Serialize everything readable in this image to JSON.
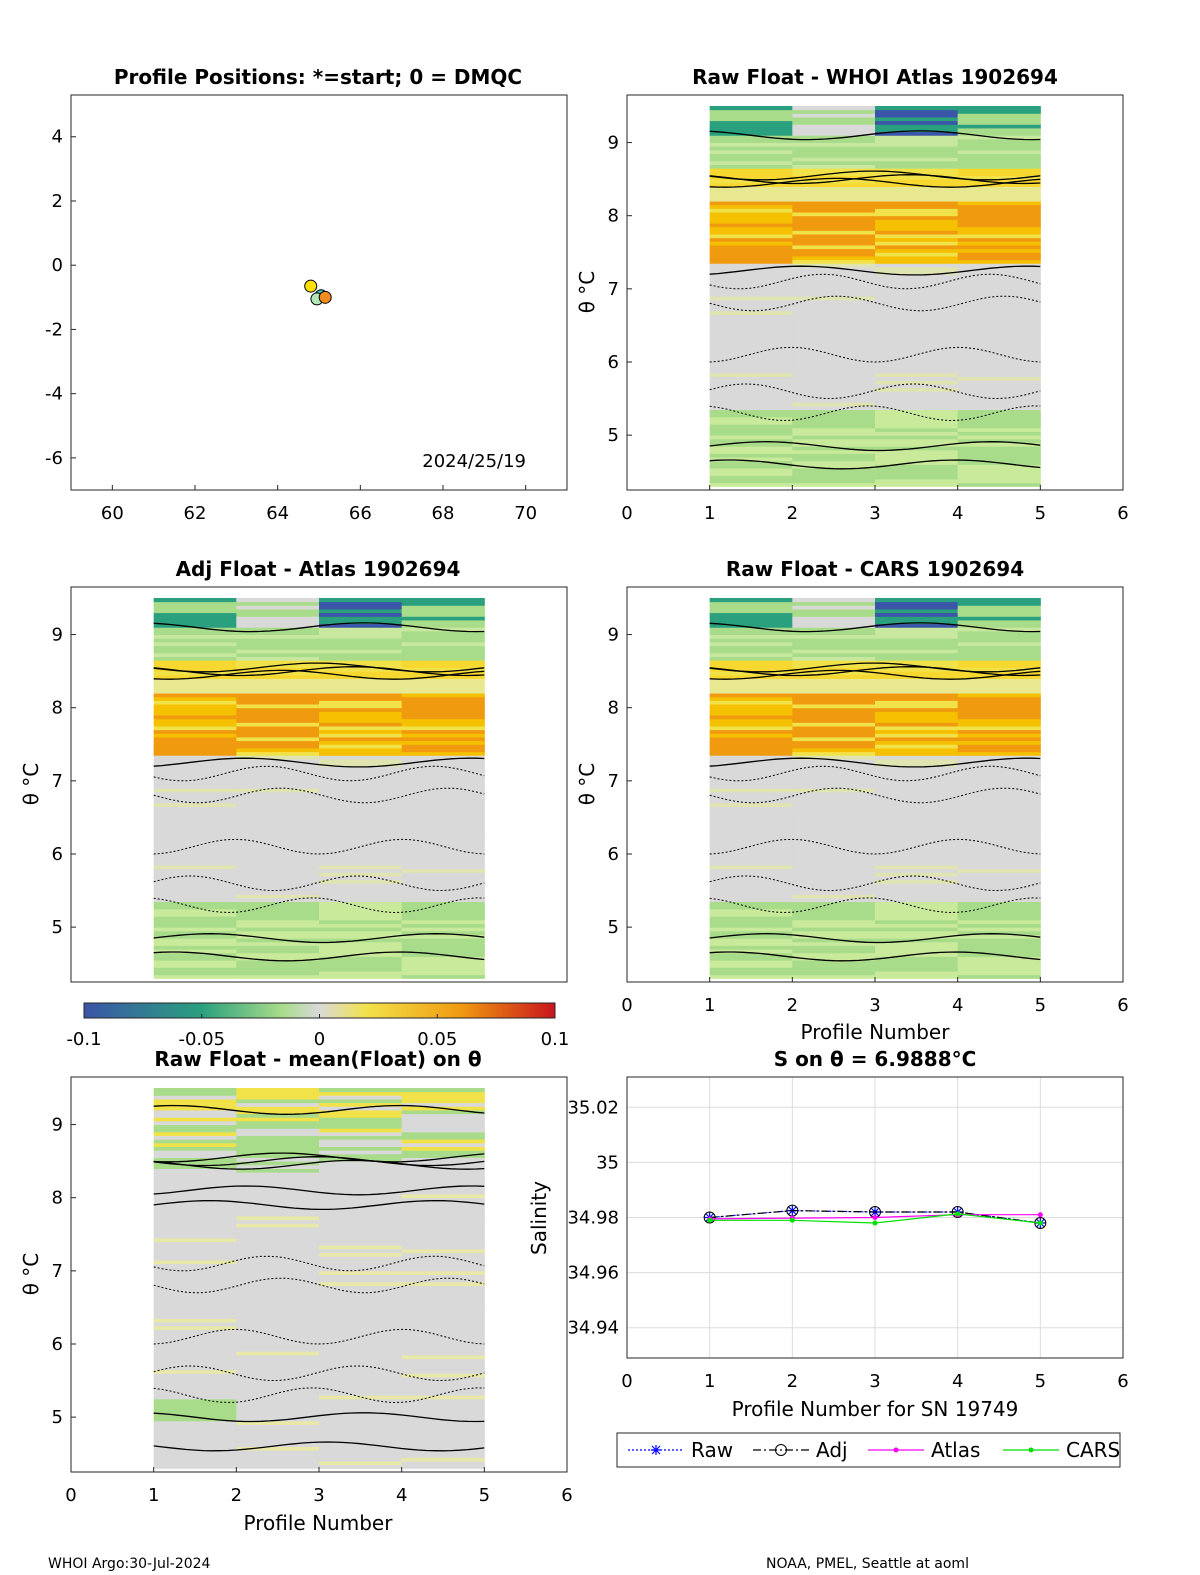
{
  "footer": {
    "left": "WHOI Argo:30-Jul-2024",
    "right": "NOAA, PMEL, Seattle at aoml"
  },
  "colors": {
    "neg_strong": "#3b55a8",
    "neg_mid": "#2aa07e",
    "neg_light": "#a8dc8a",
    "zero": "#d9d9d9",
    "pos_light": "#f2e24a",
    "pos_mid": "#f09a10",
    "pos_strong": "#c8141e"
  },
  "chart_data": [
    {
      "id": "positions",
      "type": "scatter",
      "title": "Profile Positions: *=start; 0 = DMQC",
      "xlim": [
        59,
        71
      ],
      "ylim": [
        -7,
        5.3
      ],
      "xticks": [
        "60",
        "62",
        "64",
        "66",
        "68",
        "70"
      ],
      "yticks": [
        "-6",
        "-4",
        "-2",
        "0",
        "2",
        "4"
      ],
      "annotation": "2024/25/19",
      "points": [
        {
          "x": 64.8,
          "y": -0.65,
          "color": "#ffe000"
        },
        {
          "x": 65.05,
          "y": -0.95,
          "color": "#40c0b0"
        },
        {
          "x": 64.95,
          "y": -1.05,
          "color": "#b0e6b8"
        },
        {
          "x": 65.15,
          "y": -1.0,
          "color": "#f08c20"
        }
      ]
    },
    {
      "id": "raw-whoi",
      "type": "heatmap",
      "title": "Raw Float - WHOI Atlas  1902694",
      "xlim": [
        0,
        6
      ],
      "ylim": [
        4.25,
        9.65
      ],
      "xticks": [
        "0",
        "1",
        "2",
        "3",
        "4",
        "5",
        "6"
      ],
      "yticks": [
        "5",
        "6",
        "7",
        "8",
        "9"
      ],
      "ylabel": "θ °C",
      "xlabel": ""
    },
    {
      "id": "adj-atlas",
      "type": "heatmap",
      "title": "Adj Float - Atlas  1902694",
      "xlim": [
        0,
        6
      ],
      "ylim": [
        4.25,
        9.65
      ],
      "yticks": [
        "5",
        "6",
        "7",
        "8",
        "9"
      ],
      "ylabel": "θ °C"
    },
    {
      "id": "raw-cars",
      "type": "heatmap",
      "title": "Raw Float - CARS  1902694",
      "xlim": [
        0,
        6
      ],
      "ylim": [
        4.25,
        9.65
      ],
      "xticks": [
        "0",
        "1",
        "2",
        "3",
        "4",
        "5",
        "6"
      ],
      "yticks": [
        "5",
        "6",
        "7",
        "8",
        "9"
      ],
      "ylabel": "θ °C",
      "xlabel": "Profile Number"
    },
    {
      "id": "colorbar",
      "type": "heatmap",
      "range": [
        -0.1,
        0.1
      ],
      "ticks": [
        "-0.1",
        "-0.05",
        "0",
        "0.05",
        "0.1"
      ]
    },
    {
      "id": "raw-mean",
      "type": "heatmap",
      "title": "Raw Float - mean(Float) on θ",
      "xlim": [
        0,
        6
      ],
      "ylim": [
        4.25,
        9.65
      ],
      "xticks": [
        "0",
        "1",
        "2",
        "3",
        "4",
        "5",
        "6"
      ],
      "yticks": [
        "5",
        "6",
        "7",
        "8",
        "9"
      ],
      "ylabel": "θ °C",
      "xlabel": "Profile Number"
    },
    {
      "id": "salinity",
      "type": "line",
      "title": "S on θ = 6.9888°C",
      "xlim": [
        0,
        6
      ],
      "ylim": [
        34.929,
        35.031
      ],
      "xticks": [
        "0",
        "1",
        "2",
        "3",
        "4",
        "5",
        "6"
      ],
      "yticks": [
        "34.94",
        "34.96",
        "34.98",
        "35",
        "35.02"
      ],
      "ylabel": "Salinity",
      "xlabel": "Profile Number for SN 19749",
      "x": [
        1,
        2,
        3,
        4,
        5
      ],
      "series": [
        {
          "name": "Raw",
          "color": "#0000ff",
          "values": [
            34.98,
            34.9825,
            34.982,
            34.982,
            34.978
          ]
        },
        {
          "name": "Adj",
          "color": "#000000",
          "values": [
            34.98,
            34.9825,
            34.982,
            34.982,
            34.978
          ]
        },
        {
          "name": "Atlas",
          "color": "#ff00ff",
          "values": [
            34.9795,
            34.9798,
            34.98,
            34.981,
            34.981
          ]
        },
        {
          "name": "CARS",
          "color": "#00e000",
          "values": [
            34.979,
            34.979,
            34.978,
            34.9813,
            34.978
          ]
        }
      ]
    }
  ]
}
